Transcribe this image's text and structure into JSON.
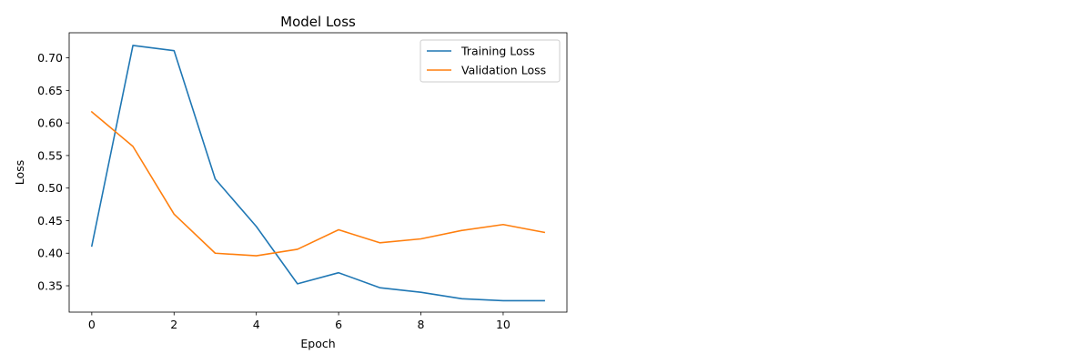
{
  "chart_data": {
    "type": "line",
    "title": "Model Loss",
    "xlabel": "Epoch",
    "ylabel": "Loss",
    "x": [
      0,
      1,
      2,
      3,
      4,
      5,
      6,
      7,
      8,
      9,
      10,
      11
    ],
    "xlim": [
      -0.55,
      11.55
    ],
    "ylim": [
      0.3095,
      0.7385
    ],
    "x_ticks": [
      0,
      2,
      4,
      6,
      8,
      10
    ],
    "x_tick_labels": [
      "0",
      "2",
      "4",
      "6",
      "8",
      "10"
    ],
    "y_ticks": [
      0.35,
      0.4,
      0.45,
      0.5,
      0.55,
      0.6,
      0.65,
      0.7
    ],
    "y_tick_labels": [
      "0.35",
      "0.40",
      "0.45",
      "0.50",
      "0.55",
      "0.60",
      "0.65",
      "0.70"
    ],
    "grid": false,
    "legend_position": "upper right",
    "series": [
      {
        "name": "Training Loss",
        "color": "#1f77b4",
        "values": [
          0.411,
          0.719,
          0.711,
          0.514,
          0.441,
          0.353,
          0.37,
          0.347,
          0.34,
          0.33,
          0.327,
          0.327
        ]
      },
      {
        "name": "Validation Loss",
        "color": "#ff7f0e",
        "values": [
          0.617,
          0.564,
          0.46,
          0.4,
          0.396,
          0.406,
          0.436,
          0.416,
          0.422,
          0.435,
          0.444,
          0.432
        ]
      }
    ]
  }
}
